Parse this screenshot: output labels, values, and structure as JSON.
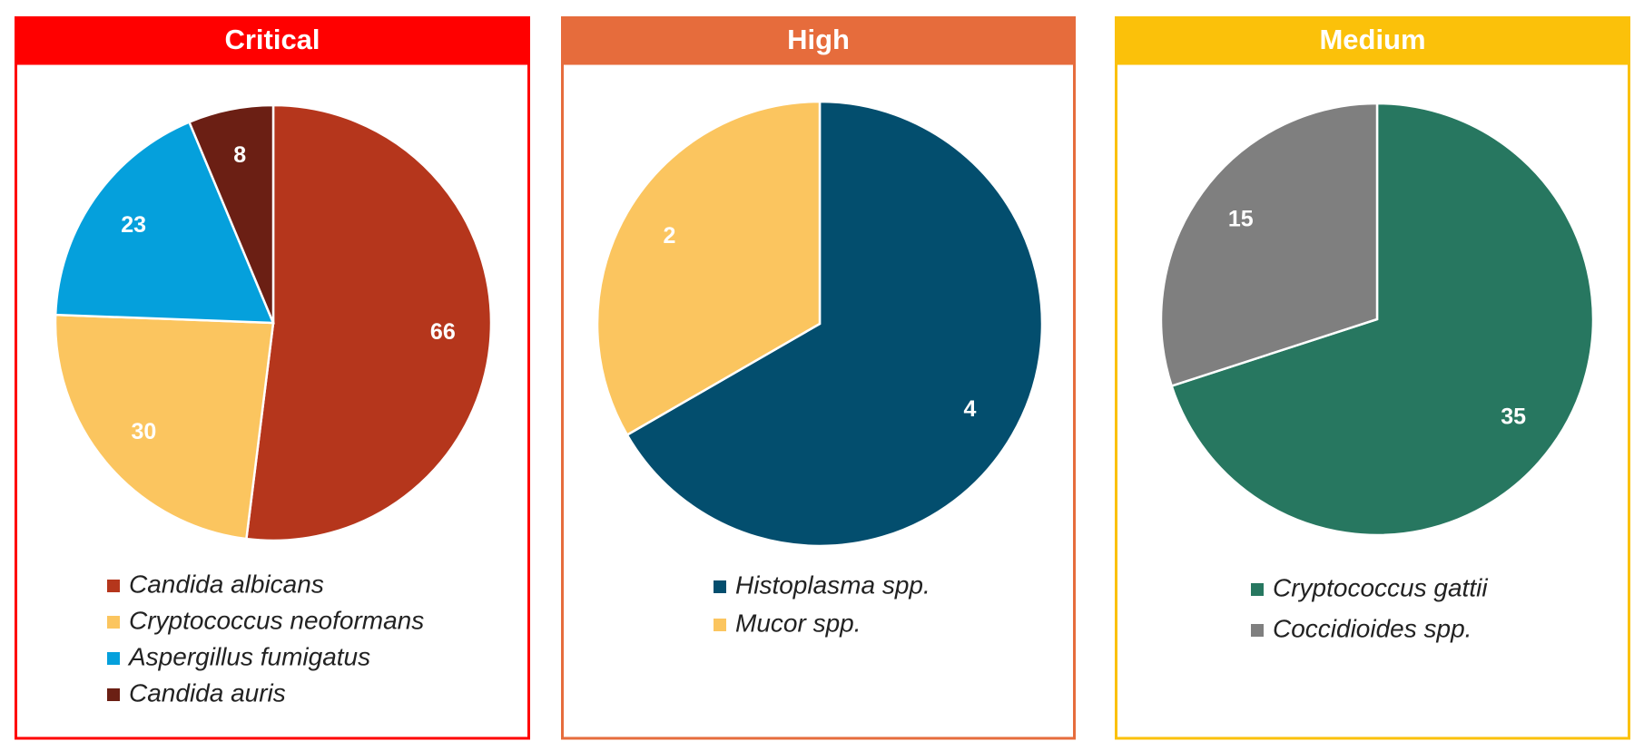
{
  "chart_data": [
    {
      "type": "pie",
      "title": "Critical",
      "header_color": "#ff0000",
      "categories": [
        "Candida albicans",
        "Cryptococcus neoformans",
        "Aspergillus fumigatus",
        "Candida auris"
      ],
      "values": [
        66,
        30,
        23,
        8
      ],
      "colors": [
        "#b5361c",
        "#fbc55f",
        "#05a0dc",
        "#6b1f14"
      ]
    },
    {
      "type": "pie",
      "title": "High",
      "header_color": "#e66c3c",
      "categories": [
        "Histoplasma spp.",
        "Mucor spp."
      ],
      "values": [
        4,
        2
      ],
      "colors": [
        "#034e6e",
        "#fbc55f"
      ]
    },
    {
      "type": "pie",
      "title": "Medium",
      "header_color": "#fbc10a",
      "categories": [
        "Cryptococcus gattii",
        "Coccidioides spp."
      ],
      "values": [
        35,
        15
      ],
      "colors": [
        "#277760",
        "#7f7f7f"
      ]
    }
  ]
}
